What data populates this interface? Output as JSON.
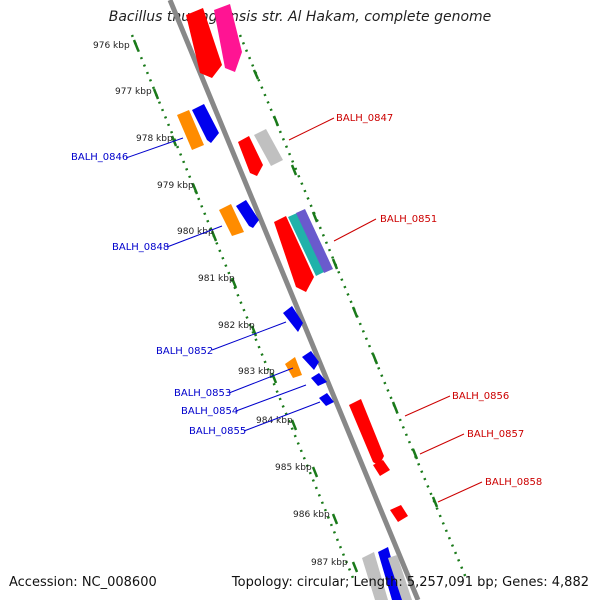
{
  "title": "Bacillus thuringiensis str. Al Hakam, complete genome",
  "accession": "Accession: NC_008600",
  "stats": "Topology: circular; Length: 5,257,091 bp; Genes: 4,882",
  "colors": {
    "blue": "#0000ee",
    "red": "#ff0000",
    "orange": "#ff8c00",
    "pink": "#ff1493",
    "gray": "#c0c0c0",
    "teal": "#20b2aa",
    "slate": "#6a5acd",
    "backbone": "#888888",
    "ticks": "#1a7a1a"
  },
  "kbp_ticks": [
    "976 kbp",
    "977 kbp",
    "978 kbp",
    "979 kbp",
    "980 kbp",
    "981 kbp",
    "982 kbp",
    "983 kbp",
    "984 kbp",
    "985 kbp",
    "986 kbp",
    "987 kbp"
  ],
  "genes_left": [
    "BALH_0846",
    "BALH_0848",
    "BALH_0852",
    "BALH_0853",
    "BALH_0854",
    "BALH_0855"
  ],
  "genes_right": [
    "BALH_0847",
    "BALH_0851",
    "BALH_0856",
    "BALH_0857",
    "BALH_0858"
  ]
}
